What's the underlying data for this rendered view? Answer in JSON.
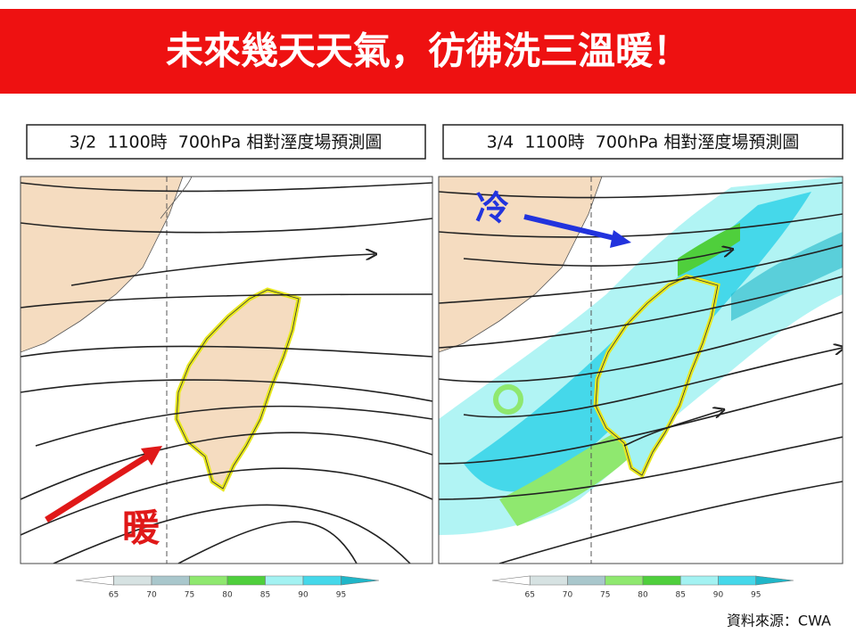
{
  "header": {
    "title": "未來幾天天氣，彷彿洗三溫暖！"
  },
  "panels": [
    {
      "label": "3/2  1100時  700hPa 相對溼度場預測圖",
      "annotation": "暖"
    },
    {
      "label": "3/4  1100時  700hPa 相對溼度場預測圖",
      "annotation": "冷"
    }
  ],
  "colorbar": {
    "ticks": [
      65,
      70,
      75,
      80,
      85,
      90,
      95
    ],
    "colors": [
      "#ffffff",
      "#d6e2e2",
      "#a9c7cc",
      "#8fe86f",
      "#4fcf3c",
      "#a3f2f2",
      "#45d8ea",
      "#1fb6c8"
    ]
  },
  "source": "資料來源：CWA"
}
